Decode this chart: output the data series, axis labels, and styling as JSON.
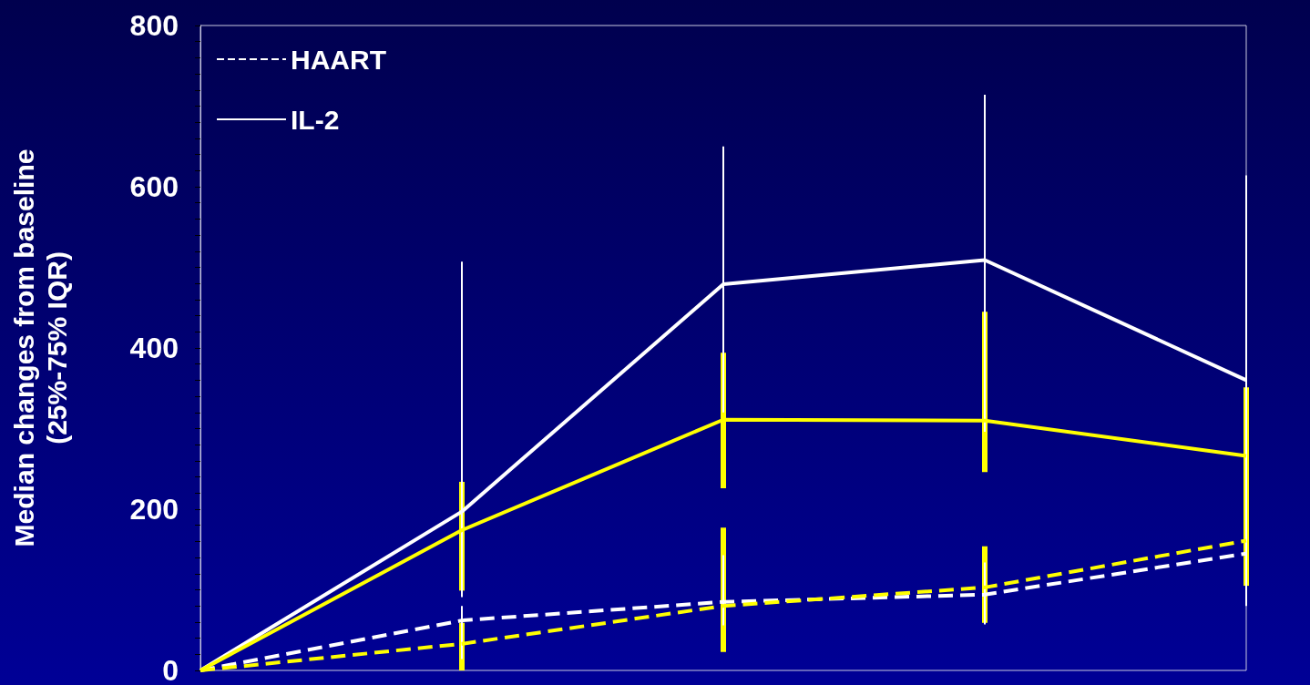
{
  "chart_data": {
    "type": "line",
    "ylabel": "Median changes from baseline\n(25%-75% IQR)",
    "categories": [
      null,
      null,
      null,
      null,
      null
    ],
    "series": [
      {
        "name": "HAART",
        "color": "#ffffff",
        "line_style": "dashed",
        "values": [
          0,
          62,
          85,
          94,
          145
        ],
        "errors": [
          null,
          [
            14,
            80
          ],
          [
            56,
            143
          ],
          [
            57,
            134
          ],
          [
            80,
            263
          ]
        ]
      },
      {
        "name": "IL-2",
        "color": "#ffffff",
        "line_style": "solid",
        "values": [
          0,
          197,
          479,
          509,
          360
        ],
        "errors": [
          null,
          [
            91,
            507
          ],
          [
            320,
            650
          ],
          [
            296,
            714
          ],
          [
            246,
            614
          ]
        ]
      },
      {
        "color": "#ffff00",
        "line_style": "dashed",
        "values": [
          0,
          33,
          80,
          103,
          161
        ],
        "errors": [
          null,
          [
            0,
            59
          ],
          [
            23,
            177
          ],
          [
            59,
            154
          ],
          [
            105,
            227
          ]
        ]
      },
      {
        "color": "#ffff00",
        "line_style": "solid",
        "values": [
          0,
          174,
          311,
          310,
          266
        ],
        "errors": [
          null,
          [
            99,
            234
          ],
          [
            226,
            394
          ],
          [
            246,
            445
          ],
          [
            201,
            351
          ]
        ]
      }
    ],
    "ylim": [
      0,
      800
    ],
    "yticks": [
      0,
      {
        "value": 20,
        "label": null
      },
      {
        "value": 40,
        "label": null
      },
      {
        "value": 60,
        "label": null
      },
      {
        "value": 80,
        "label": null
      },
      {
        "value": 100,
        "label": null
      },
      {
        "value": 120,
        "label": null
      },
      {
        "value": 140,
        "label": null
      },
      {
        "value": 160,
        "label": null
      },
      {
        "value": 180,
        "label": null
      },
      200,
      {
        "value": 220,
        "label": null
      },
      {
        "value": 240,
        "label": null
      },
      {
        "value": 260,
        "label": null
      },
      {
        "value": 280,
        "label": null
      },
      {
        "value": 300,
        "label": null
      },
      {
        "value": 320,
        "label": null
      },
      {
        "value": 340,
        "label": null
      },
      {
        "value": 360,
        "label": null
      },
      {
        "value": 380,
        "label": null
      },
      400,
      {
        "value": 420,
        "label": null
      },
      {
        "value": 440,
        "label": null
      },
      {
        "value": 460,
        "label": null
      },
      {
        "value": 480,
        "label": null
      },
      {
        "value": 500,
        "label": null
      },
      {
        "value": 520,
        "label": null
      },
      {
        "value": 540,
        "label": null
      },
      {
        "value": 560,
        "label": null
      },
      {
        "value": 580,
        "label": null
      },
      600,
      {
        "value": 620,
        "label": null
      },
      {
        "value": 640,
        "label": null
      },
      {
        "value": 660,
        "label": null
      },
      {
        "value": 680,
        "label": null
      },
      {
        "value": 700,
        "label": null
      },
      {
        "value": 720,
        "label": null
      },
      {
        "value": 740,
        "label": null
      },
      {
        "value": 760,
        "label": null
      },
      {
        "value": 780,
        "label": null
      },
      800
    ],
    "tick_labels": "y",
    "grid": false,
    "legend": "top left",
    "marker": "none"
  }
}
